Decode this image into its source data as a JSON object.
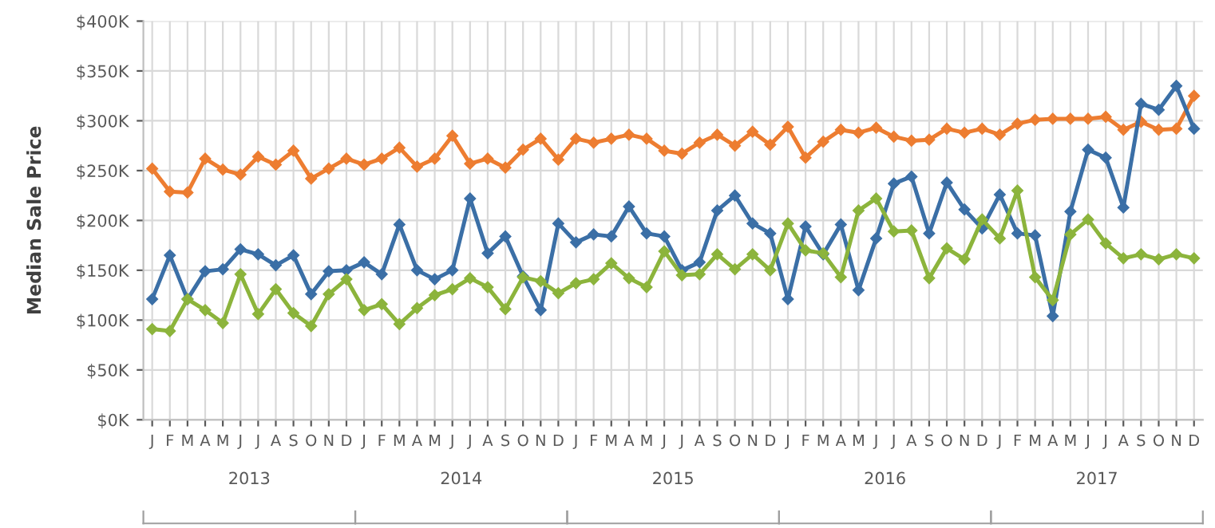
{
  "chart_data": {
    "type": "line",
    "ylabel": "Median Sale Price",
    "categories": [
      "J",
      "F",
      "M",
      "A",
      "M",
      "J",
      "J",
      "A",
      "S",
      "O",
      "N",
      "D",
      "J",
      "F",
      "M",
      "A",
      "M",
      "J",
      "J",
      "A",
      "S",
      "O",
      "N",
      "D",
      "J",
      "F",
      "M",
      "A",
      "M",
      "J",
      "J",
      "A",
      "S",
      "O",
      "N",
      "D",
      "J",
      "F",
      "M",
      "A",
      "M",
      "J",
      "J",
      "A",
      "S",
      "O",
      "N",
      "D",
      "J",
      "F",
      "M",
      "A",
      "M",
      "J",
      "J",
      "A",
      "S",
      "O",
      "N",
      "D"
    ],
    "series": [
      {
        "color": "#ed7d31",
        "values": [
          252,
          229,
          228,
          262,
          251,
          246,
          264,
          256,
          270,
          242,
          252,
          262,
          256,
          262,
          273,
          254,
          262,
          285,
          257,
          262,
          253,
          271,
          282,
          261,
          282,
          278,
          282,
          286,
          282,
          270,
          267,
          278,
          286,
          275,
          289,
          276,
          294,
          263,
          279,
          291,
          288,
          293,
          284,
          280,
          281,
          292,
          288,
          292,
          286,
          297,
          301,
          302,
          302,
          302,
          304,
          291,
          299,
          291,
          292,
          325
        ]
      },
      {
        "color": "#3b6fa6",
        "values": [
          121,
          165,
          121,
          149,
          151,
          171,
          166,
          155,
          165,
          126,
          149,
          150,
          158,
          146,
          196,
          150,
          141,
          150,
          222,
          167,
          184,
          144,
          110,
          197,
          178,
          186,
          184,
          214,
          187,
          184,
          150,
          158,
          210,
          225,
          197,
          187,
          121,
          194,
          166,
          196,
          130,
          182,
          237,
          244,
          187,
          238,
          211,
          192,
          226,
          187,
          185,
          104,
          209,
          271,
          263,
          213,
          317,
          311,
          335,
          292
        ]
      },
      {
        "color": "#8cb43c",
        "values": [
          91,
          89,
          121,
          110,
          97,
          146,
          106,
          131,
          107,
          94,
          126,
          141,
          110,
          116,
          96,
          112,
          125,
          131,
          142,
          133,
          111,
          143,
          139,
          127,
          137,
          141,
          157,
          142,
          133,
          169,
          145,
          146,
          166,
          151,
          166,
          150,
          197,
          170,
          167,
          143,
          210,
          222,
          189,
          190,
          142,
          172,
          161,
          201,
          182,
          230,
          143,
          120,
          186,
          201,
          177,
          162,
          166,
          161,
          166,
          162
        ]
      }
    ],
    "ylim": [
      0,
      400
    ],
    "yticks": [
      {
        "value": 0,
        "label": "$0K"
      },
      {
        "value": 50,
        "label": "$50K"
      },
      {
        "value": 100,
        "label": "$100K"
      },
      {
        "value": 150,
        "label": "$150K"
      },
      {
        "value": 200,
        "label": "$200K"
      },
      {
        "value": 250,
        "label": "$250K"
      },
      {
        "value": 300,
        "label": "$300K"
      },
      {
        "value": 350,
        "label": "$350K"
      },
      {
        "value": 400,
        "label": "$400K"
      }
    ],
    "grid": true,
    "marker": "diamond",
    "line_style": "solid",
    "legend": false,
    "annotations": [
      "2013",
      "2014",
      "2015",
      "2016",
      "2017"
    ]
  }
}
